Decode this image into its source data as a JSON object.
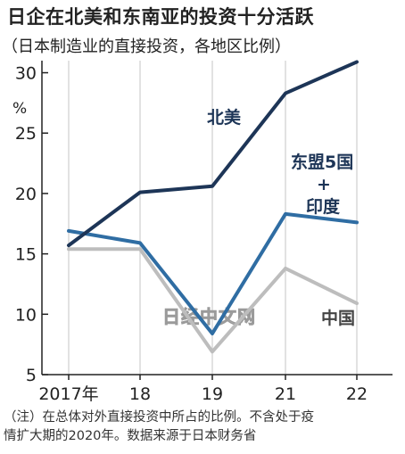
{
  "header": {
    "title": "日企在北美和东南亚的投资十分活跃",
    "subtitle": "（日本制造业的直接投资，各地区比例）"
  },
  "chart_data": {
    "type": "line",
    "title": "日企在北美和东南亚的投资十分活跃",
    "subtitle": "（日本制造业的直接投资，各地区比例）",
    "x": [
      "2017年",
      "18",
      "19",
      "21",
      "22"
    ],
    "y_unit": "%",
    "ylim": [
      5,
      31
    ],
    "yticks": [
      5,
      10,
      15,
      20,
      25,
      30
    ],
    "grid": "vertical",
    "series": [
      {
        "name": "北美",
        "values": [
          15.7,
          20.1,
          20.6,
          28.3,
          30.9
        ],
        "color": "#1d3557"
      },
      {
        "name": "东盟5国+印度",
        "values": [
          16.9,
          15.9,
          8.4,
          18.3,
          17.6
        ],
        "color": "#2f6da3"
      },
      {
        "name": "中国",
        "values": [
          15.4,
          15.4,
          6.9,
          13.8,
          10.9
        ],
        "color": "#bdbdbd"
      }
    ],
    "labels": {
      "north_america": "北美",
      "asean_line1": "东盟5国",
      "asean_plus": "+",
      "asean_line2": "印度",
      "china": "中国"
    }
  },
  "watermark": "日经中文网",
  "note": {
    "line1": "（注）在总体对外直接投资中所占的比例。不含处于疫",
    "line2": "情扩大期的2020年。数据来源于日本财务省"
  }
}
